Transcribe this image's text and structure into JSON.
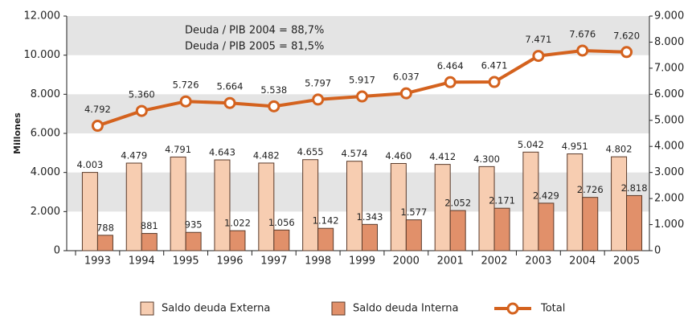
{
  "chart_data": {
    "type": "bar_line",
    "y_label": "Millones",
    "annotations": [
      "Deuda / PIB 2004 = 88,7%",
      "Deuda / PIB 2005 = 81,5%"
    ],
    "categories": [
      "1993",
      "1994",
      "1995",
      "1996",
      "1997",
      "1998",
      "1999",
      "2000",
      "2001",
      "2002",
      "2003",
      "2004",
      "2005"
    ],
    "series": [
      {
        "name": "Saldo deuda Externa",
        "color": "#f7cdb1",
        "type": "bar",
        "values": [
          4003,
          4479,
          4791,
          4643,
          4482,
          4655,
          4574,
          4460,
          4412,
          4300,
          5042,
          4951,
          4802
        ],
        "value_labels": [
          "4.003",
          "4.479",
          "4.791",
          "4.643",
          "4.482",
          "4.655",
          "4.574",
          "4.460",
          "4.412",
          "4.300",
          "5.042",
          "4.951",
          "4.802"
        ]
      },
      {
        "name": "Saldo deuda Interna",
        "color": "#e1906a",
        "type": "bar",
        "values": [
          788,
          881,
          935,
          1022,
          1056,
          1142,
          1343,
          1577,
          2052,
          2171,
          2429,
          2726,
          2818
        ],
        "value_labels": [
          "788",
          "881",
          "935",
          "1.022",
          "1.056",
          "1.142",
          "1.343",
          "1.577",
          "2.052",
          "2.171",
          "2.429",
          "2.726",
          "2.818"
        ]
      },
      {
        "name": "Total",
        "color": "#d4621e",
        "type": "line",
        "axis": "y2",
        "values": [
          4792,
          5360,
          5726,
          5664,
          5538,
          5797,
          5917,
          6037,
          6464,
          6471,
          7471,
          7676,
          7620
        ],
        "value_labels": [
          "4.792",
          "5.360",
          "5.726",
          "5.664",
          "5.538",
          "5.797",
          "5.917",
          "6.037",
          "6.464",
          "6.471",
          "7.471",
          "7.676",
          "7.620"
        ]
      }
    ],
    "ylim": [
      0,
      12000
    ],
    "yticks": [
      0,
      {
        "value": 2000,
        "label": "2.000"
      },
      {
        "value": 4000,
        "label": "4.000"
      },
      {
        "value": 6000,
        "label": "6.000"
      },
      {
        "value": 8000,
        "label": "8.000"
      },
      {
        "value": 10000,
        "label": "10.000"
      },
      {
        "value": 12000,
        "label": "12.000"
      }
    ],
    "y2lim": [
      0,
      9000
    ],
    "y2ticks": [
      0,
      {
        "value": 1000,
        "label": "1.000"
      },
      {
        "value": 2000,
        "label": "2.000"
      },
      {
        "value": 3000,
        "label": "3.000"
      },
      {
        "value": 4000,
        "label": "4.000"
      },
      {
        "value": 5000,
        "label": "5.000"
      },
      {
        "value": 6000,
        "label": "6.000"
      },
      {
        "value": 7000,
        "label": "7.000"
      },
      {
        "value": 8000,
        "label": "8.000"
      },
      {
        "value": 9000,
        "label": "9.000"
      }
    ],
    "legend": "bottom",
    "grid_bands": true
  }
}
